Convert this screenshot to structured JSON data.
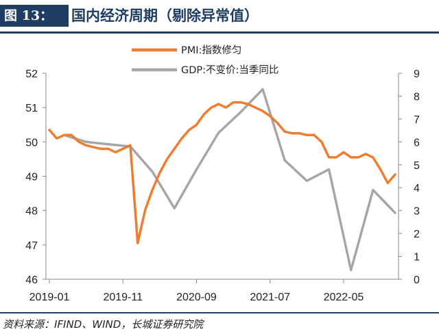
{
  "header": {
    "figure_label": "图 13：",
    "title": "国内经济周期（剔除异常值）"
  },
  "footer": {
    "source": "资料来源：IFIND、WIND，长城证券研究院"
  },
  "colors": {
    "pmi": "#ee7d31",
    "gdp": "#a6a6a6",
    "brand": "#1f3c63"
  },
  "chart_data": {
    "type": "line",
    "title": "",
    "legend_position": "top",
    "grid": false,
    "x_tick_labels": [
      "2019-01",
      "2019-11",
      "2020-09",
      "2021-07",
      "2022-05"
    ],
    "x_range": [
      "2019-01",
      "2022-12"
    ],
    "left_axis": {
      "ylim": [
        46,
        52
      ],
      "ticks": [
        "46",
        "47",
        "48",
        "49",
        "50",
        "51",
        "52"
      ]
    },
    "right_axis": {
      "ylim": [
        0,
        9
      ],
      "ticks": [
        "0",
        "1",
        "2",
        "3",
        "4",
        "5",
        "6",
        "7",
        "8",
        "9"
      ]
    },
    "series": [
      {
        "name": "PMI:指数修匀",
        "axis": "left",
        "x": [
          "2019-01",
          "2019-02",
          "2019-03",
          "2019-04",
          "2019-05",
          "2019-06",
          "2019-07",
          "2019-08",
          "2019-09",
          "2019-10",
          "2019-11",
          "2019-12",
          "2020-01",
          "2020-02",
          "2020-03",
          "2020-04",
          "2020-05",
          "2020-06",
          "2020-07",
          "2020-08",
          "2020-09",
          "2020-10",
          "2020-11",
          "2020-12",
          "2021-01",
          "2021-02",
          "2021-03",
          "2021-04",
          "2021-05",
          "2021-06",
          "2021-07",
          "2021-08",
          "2021-09",
          "2021-10",
          "2021-11",
          "2021-12",
          "2022-01",
          "2022-02",
          "2022-03",
          "2022-04",
          "2022-05",
          "2022-06",
          "2022-07",
          "2022-08",
          "2022-09",
          "2022-10",
          "2022-11",
          "2022-12"
        ],
        "values": [
          50.35,
          50.1,
          50.2,
          50.2,
          50.0,
          49.9,
          49.85,
          49.8,
          49.8,
          49.7,
          49.8,
          49.9,
          47.05,
          48.0,
          48.6,
          49.1,
          49.5,
          49.8,
          50.1,
          50.35,
          50.5,
          50.8,
          51.0,
          51.1,
          51.0,
          51.15,
          51.15,
          51.1,
          51.0,
          50.9,
          50.75,
          50.55,
          50.3,
          50.25,
          50.25,
          50.2,
          50.2,
          50.0,
          49.55,
          49.55,
          49.7,
          49.55,
          49.55,
          49.65,
          49.55,
          49.2,
          48.8,
          49.05
        ]
      },
      {
        "name": "GDP:不变价:当季同比",
        "axis": "right",
        "x": [
          "2019-03",
          "2019-06",
          "2019-09",
          "2019-12",
          "2020-03",
          "2020-06",
          "2020-09",
          "2020-12",
          "2021-03",
          "2021-06",
          "2021-09",
          "2021-12",
          "2022-03",
          "2022-06",
          "2022-09",
          "2022-12"
        ],
        "values": [
          6.3,
          6.0,
          5.9,
          5.8,
          4.7,
          3.1,
          4.8,
          6.4,
          7.3,
          8.3,
          5.2,
          4.3,
          4.8,
          0.4,
          3.9,
          2.9
        ]
      }
    ]
  }
}
